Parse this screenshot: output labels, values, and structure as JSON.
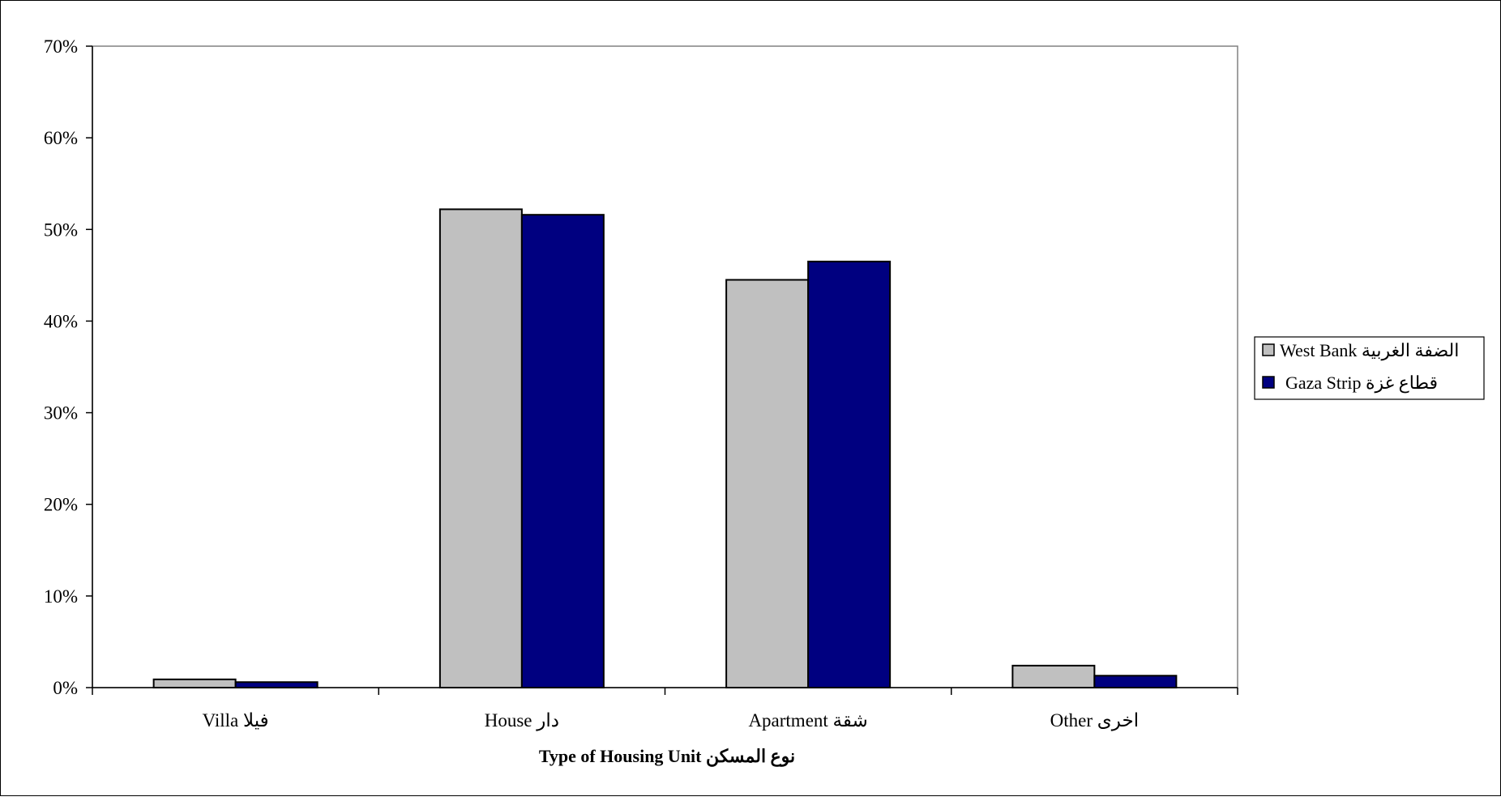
{
  "chart_data": {
    "type": "bar",
    "title": "",
    "xlabel": "Type of Housing Unit  نوع المسكن",
    "ylabel": "",
    "categories": [
      "Villa فيلا",
      "House  دار",
      "Apartment  شقة",
      "Other  اخرى"
    ],
    "series": [
      {
        "name": "West Bank  الضفة الغربية",
        "values": [
          0.9,
          52.2,
          44.5,
          2.4
        ]
      },
      {
        "name": "Gaza Strip  قطاع غزة",
        "values": [
          0.6,
          51.6,
          46.5,
          1.3
        ]
      }
    ],
    "ylim": [
      0,
      70
    ],
    "yticks": [
      "0%",
      "10%",
      "20%",
      "30%",
      "40%",
      "50%",
      "60%",
      "70%"
    ],
    "grid": false,
    "legend_position": "right",
    "colors": {
      "West Bank": "#c0c0c0",
      "Gaza Strip": "#000080"
    }
  }
}
